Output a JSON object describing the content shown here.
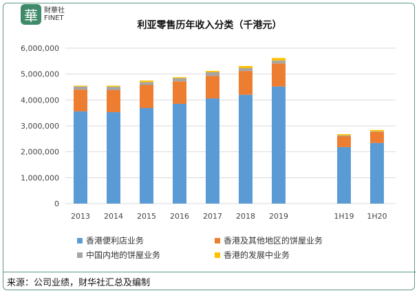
{
  "logo": {
    "glyph": "華",
    "line1": "財華社",
    "line2": "FINET"
  },
  "chart_data": {
    "type": "bar",
    "stacked": true,
    "title": "利亚零售历年收入分类（千港元）",
    "categories": [
      "2013",
      "2014",
      "2015",
      "2016",
      "2017",
      "2018",
      "2019",
      "1H19",
      "1H20"
    ],
    "ylim": [
      0,
      6000000
    ],
    "yticks": [
      "0",
      "1,000,000",
      "2,000,000",
      "3,000,000",
      "4,000,000",
      "5,000,000",
      "6,000,000"
    ],
    "grid": true,
    "legend_position": "bottom",
    "series": [
      {
        "name": "香港便利店业务",
        "color": "#5b9bd5",
        "values": [
          3560000,
          3530000,
          3690000,
          3850000,
          4060000,
          4200000,
          4520000,
          2180000,
          2340000
        ]
      },
      {
        "name": "香港及其他地区的饼屋业务",
        "color": "#ed7d31",
        "values": [
          840000,
          850000,
          890000,
          870000,
          870000,
          920000,
          890000,
          420000,
          430000
        ]
      },
      {
        "name": "中国内地的饼屋业务",
        "color": "#a5a5a5",
        "values": [
          120000,
          130000,
          110000,
          120000,
          140000,
          110000,
          110000,
          30000,
          20000
        ]
      },
      {
        "name": "香港的发展中业务",
        "color": "#ffc000",
        "values": [
          30000,
          40000,
          60000,
          40000,
          50000,
          80000,
          100000,
          50000,
          50000
        ]
      }
    ]
  },
  "source": "来源：公司业绩，财华社汇总及编制"
}
